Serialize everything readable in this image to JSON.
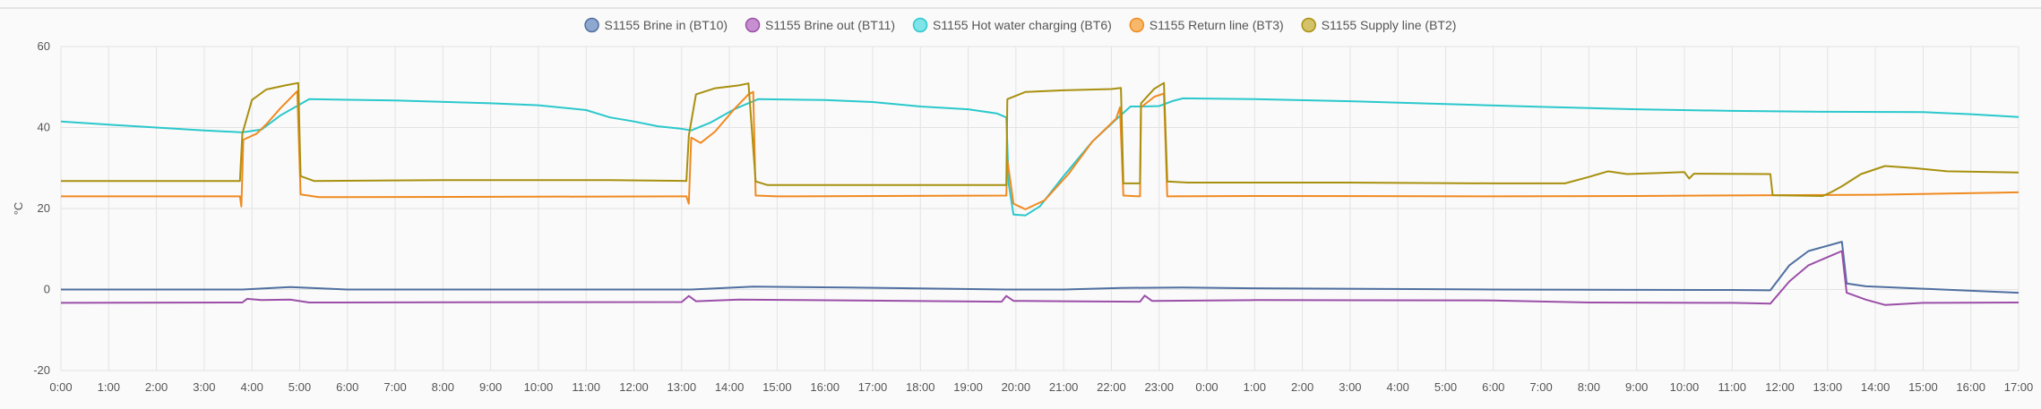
{
  "chart_data": {
    "type": "line",
    "ylabel": "°C",
    "ylim": [
      -20,
      60
    ],
    "yticks": [
      60,
      40,
      20,
      0,
      -20
    ],
    "xlim": [
      0,
      41
    ],
    "xtick_labels": [
      "0:00",
      "1:00",
      "2:00",
      "3:00",
      "4:00",
      "5:00",
      "6:00",
      "7:00",
      "8:00",
      "9:00",
      "10:00",
      "11:00",
      "12:00",
      "13:00",
      "14:00",
      "15:00",
      "16:00",
      "17:00",
      "18:00",
      "19:00",
      "20:00",
      "21:00",
      "22:00",
      "23:00",
      "0:00",
      "1:00",
      "2:00",
      "3:00",
      "4:00",
      "5:00",
      "6:00",
      "7:00",
      "8:00",
      "9:00",
      "10:00",
      "11:00",
      "12:00",
      "13:00",
      "14:00",
      "15:00",
      "16:00",
      "17:00"
    ],
    "x_unit": "hours since first 0:00 tick",
    "grid": true,
    "legend_position": "top-center",
    "series": [
      {
        "name": "S1155 Brine in (BT10)",
        "color": "#4f6fa0",
        "fill": "#8fa8cf",
        "points": [
          [
            0,
            0
          ],
          [
            3.8,
            0
          ],
          [
            4.8,
            0.6
          ],
          [
            6,
            0
          ],
          [
            10,
            0
          ],
          [
            12,
            0
          ],
          [
            13.2,
            0
          ],
          [
            14.5,
            0.7
          ],
          [
            16.5,
            0.5
          ],
          [
            19.8,
            0
          ],
          [
            21,
            0
          ],
          [
            22.2,
            0.4
          ],
          [
            23.5,
            0.5
          ],
          [
            25,
            0.3
          ],
          [
            30,
            0
          ],
          [
            35,
            -0.1
          ],
          [
            35.8,
            -0.2
          ],
          [
            36.2,
            6
          ],
          [
            36.6,
            9.5
          ],
          [
            37.3,
            11.8
          ],
          [
            37.4,
            1.5
          ],
          [
            37.8,
            0.8
          ],
          [
            39,
            0.2
          ],
          [
            41,
            -0.8
          ]
        ]
      },
      {
        "name": "S1155 Brine out (BT11)",
        "color": "#9b4fa8",
        "fill": "#c58fd0",
        "points": [
          [
            0,
            -3.3
          ],
          [
            3.8,
            -3.2
          ],
          [
            3.9,
            -2.3
          ],
          [
            4.2,
            -2.6
          ],
          [
            4.8,
            -2.5
          ],
          [
            5.2,
            -3.2
          ],
          [
            13,
            -3.1
          ],
          [
            13.15,
            -1.6
          ],
          [
            13.3,
            -2.9
          ],
          [
            14.2,
            -2.5
          ],
          [
            15.5,
            -2.6
          ],
          [
            19.7,
            -3
          ],
          [
            19.8,
            -1.6
          ],
          [
            19.95,
            -2.8
          ],
          [
            21,
            -2.9
          ],
          [
            22.6,
            -3
          ],
          [
            22.7,
            -1.5
          ],
          [
            22.85,
            -2.8
          ],
          [
            25,
            -2.6
          ],
          [
            30,
            -2.7
          ],
          [
            32,
            -3.2
          ],
          [
            35,
            -3.3
          ],
          [
            35.8,
            -3.5
          ],
          [
            36.2,
            2
          ],
          [
            36.6,
            6
          ],
          [
            37.3,
            9.5
          ],
          [
            37.4,
            -0.8
          ],
          [
            37.8,
            -2.5
          ],
          [
            38.2,
            -3.8
          ],
          [
            39,
            -3.3
          ],
          [
            41,
            -3.2
          ]
        ]
      },
      {
        "name": "S1155 Hot water charging (BT6)",
        "color": "#2ac8cc",
        "fill": "#7fe3e8",
        "points": [
          [
            0,
            41.5
          ],
          [
            1,
            40.7
          ],
          [
            2,
            40
          ],
          [
            3,
            39.3
          ],
          [
            3.8,
            38.8
          ],
          [
            4.2,
            39.5
          ],
          [
            4.6,
            43
          ],
          [
            5.2,
            47
          ],
          [
            7,
            46.7
          ],
          [
            9,
            46
          ],
          [
            10,
            45.5
          ],
          [
            11,
            44.3
          ],
          [
            11.5,
            42.5
          ],
          [
            12,
            41.5
          ],
          [
            12.5,
            40.3
          ],
          [
            13,
            39.7
          ],
          [
            13.2,
            39.3
          ],
          [
            13.6,
            41.2
          ],
          [
            14.1,
            44.5
          ],
          [
            14.6,
            47
          ],
          [
            16,
            46.8
          ],
          [
            17,
            46.3
          ],
          [
            18,
            45.2
          ],
          [
            19,
            44.5
          ],
          [
            19.6,
            43.5
          ],
          [
            19.8,
            42.5
          ],
          [
            19.85,
            26
          ],
          [
            19.95,
            18.5
          ],
          [
            20.2,
            18.3
          ],
          [
            20.5,
            20.5
          ],
          [
            21,
            28
          ],
          [
            21.6,
            36.5
          ],
          [
            22.1,
            42
          ],
          [
            22.4,
            45.2
          ],
          [
            22.65,
            45.2
          ],
          [
            23,
            45.3
          ],
          [
            23.3,
            46.6
          ],
          [
            23.5,
            47.2
          ],
          [
            25,
            47
          ],
          [
            27,
            46.5
          ],
          [
            29,
            45.8
          ],
          [
            31,
            45.1
          ],
          [
            33,
            44.5
          ],
          [
            35,
            44.1
          ],
          [
            37,
            43.9
          ],
          [
            39,
            43.8
          ],
          [
            40,
            43.3
          ],
          [
            41,
            42.6
          ]
        ]
      },
      {
        "name": "S1155 Return line (BT3)",
        "color": "#f08a20",
        "fill": "#f7b86a",
        "points": [
          [
            0,
            23
          ],
          [
            3.75,
            23
          ],
          [
            3.78,
            20.5
          ],
          [
            3.82,
            37
          ],
          [
            4.1,
            38.5
          ],
          [
            4.3,
            40.8
          ],
          [
            4.6,
            44.8
          ],
          [
            4.95,
            49
          ],
          [
            5.02,
            23.5
          ],
          [
            5.4,
            22.8
          ],
          [
            13.1,
            23
          ],
          [
            13.15,
            21.2
          ],
          [
            13.2,
            37.5
          ],
          [
            13.4,
            36.2
          ],
          [
            13.7,
            39
          ],
          [
            14.1,
            44.5
          ],
          [
            14.4,
            48.2
          ],
          [
            14.5,
            48.8
          ],
          [
            14.55,
            23.2
          ],
          [
            15,
            23
          ],
          [
            19.8,
            23.2
          ],
          [
            19.82,
            32
          ],
          [
            19.95,
            21.2
          ],
          [
            20.2,
            19.8
          ],
          [
            20.6,
            22
          ],
          [
            21.1,
            28.5
          ],
          [
            21.6,
            36.5
          ],
          [
            22.1,
            42.2
          ],
          [
            22.18,
            45
          ],
          [
            22.25,
            23.2
          ],
          [
            22.6,
            23
          ],
          [
            22.62,
            45
          ],
          [
            22.9,
            47.6
          ],
          [
            23.1,
            48.4
          ],
          [
            23.17,
            23
          ],
          [
            25,
            23.1
          ],
          [
            30,
            23
          ],
          [
            33,
            23.1
          ],
          [
            36,
            23.3
          ],
          [
            38,
            23.4
          ],
          [
            41,
            24
          ]
        ]
      },
      {
        "name": "S1155 Supply line (BT2)",
        "color": "#a8900f",
        "fill": "#d4c26a",
        "points": [
          [
            0,
            26.8
          ],
          [
            3.75,
            26.8
          ],
          [
            3.8,
            38.5
          ],
          [
            4,
            46.8
          ],
          [
            4.3,
            49.4
          ],
          [
            4.7,
            50.4
          ],
          [
            4.97,
            51
          ],
          [
            5.02,
            28
          ],
          [
            5.3,
            26.8
          ],
          [
            8,
            27
          ],
          [
            11.5,
            27
          ],
          [
            13.1,
            26.8
          ],
          [
            13.15,
            38
          ],
          [
            13.3,
            48.2
          ],
          [
            13.7,
            49.7
          ],
          [
            14.2,
            50.4
          ],
          [
            14.4,
            50.9
          ],
          [
            14.55,
            26.7
          ],
          [
            14.8,
            25.8
          ],
          [
            19.8,
            25.8
          ],
          [
            19.82,
            47
          ],
          [
            20.2,
            48.8
          ],
          [
            21,
            49.2
          ],
          [
            22,
            49.5
          ],
          [
            22.2,
            49.8
          ],
          [
            22.25,
            26.2
          ],
          [
            22.6,
            26.2
          ],
          [
            22.62,
            46
          ],
          [
            22.9,
            49.6
          ],
          [
            23.1,
            51
          ],
          [
            23.17,
            26.7
          ],
          [
            23.6,
            26.4
          ],
          [
            27,
            26.4
          ],
          [
            30,
            26.2
          ],
          [
            31.5,
            26.2
          ],
          [
            32,
            27.8
          ],
          [
            32.4,
            29.2
          ],
          [
            32.8,
            28.5
          ],
          [
            33.5,
            28.8
          ],
          [
            34,
            29
          ],
          [
            34.1,
            27.4
          ],
          [
            34.2,
            28.6
          ],
          [
            35.8,
            28.5
          ],
          [
            35.85,
            23.3
          ],
          [
            36.9,
            23.1
          ],
          [
            37.1,
            24.2
          ],
          [
            37.3,
            25.5
          ],
          [
            37.7,
            28.5
          ],
          [
            38.2,
            30.5
          ],
          [
            38.8,
            30
          ],
          [
            39.5,
            29.2
          ],
          [
            41,
            28.9
          ]
        ]
      }
    ]
  }
}
